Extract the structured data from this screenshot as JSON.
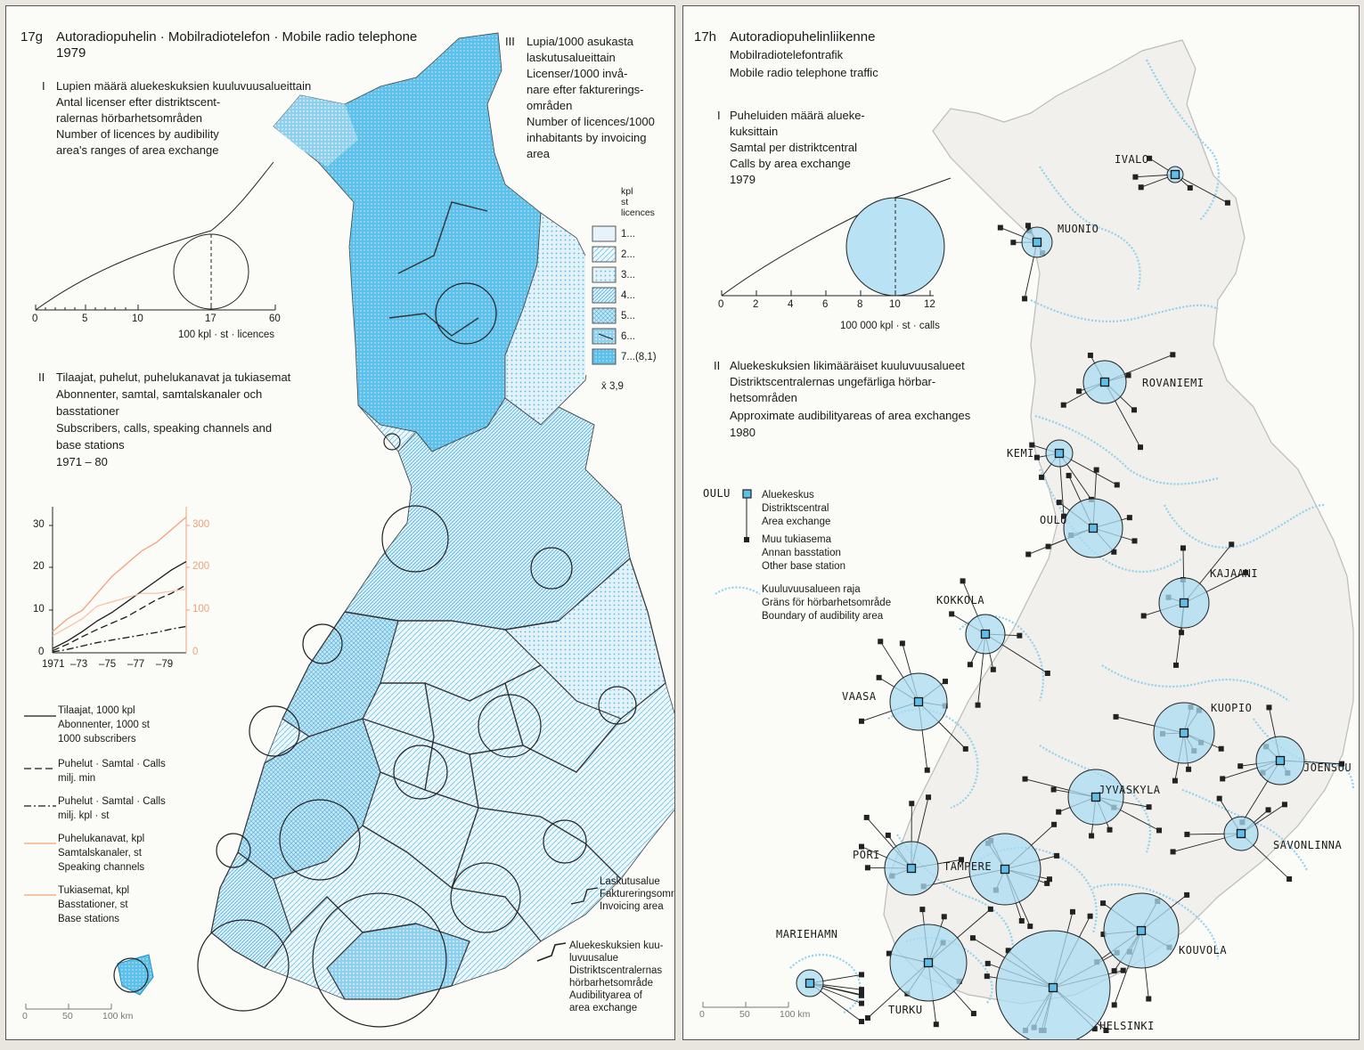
{
  "left": {
    "code": "17g",
    "title": "Autoradiopuhelin · Mobilradiotelefon · Mobile radio telephone",
    "year": "1979",
    "I": {
      "num": "I",
      "lines": [
        "Lupien määrä aluekeskuksien kuuluvuusalueittain",
        "Antal licenser efter distriktscent-",
        "ralernas hörbarhetsområden",
        "Number of licences by audibility",
        "area's ranges of area exchange"
      ],
      "scale_ticks": [
        "0",
        "5",
        "10",
        "17",
        "60"
      ],
      "scale_unit": "100 kpl · st · licences"
    },
    "II": {
      "num": "II",
      "lines": [
        "Tilaajat, puhelut, puhelukanavat ja tukiasemat",
        "Abonnenter, samtal, samtalskanaler och",
        "basstationer",
        "Subscribers, calls, speaking channels and",
        "base stations",
        "1971 – 80"
      ],
      "left_ticks": [
        "30",
        "20",
        "10",
        "0"
      ],
      "right_ticks": [
        "300",
        "200",
        "100",
        "0"
      ],
      "x_ticks": [
        "1971",
        "–73",
        "–75",
        "–77",
        "–79"
      ],
      "legend": [
        {
          "lines": [
            "Tilaajat, 1000 kpl",
            "Abonnenter, 1000 st",
            "1000 subscribers"
          ],
          "color": "#1a1a1a",
          "dash": "none"
        },
        {
          "lines": [
            "Puhelut · Samtal · Calls",
            "milj. min"
          ],
          "color": "#1a1a1a",
          "dash": "8,4"
        },
        {
          "lines": [
            "Puhelut · Samtal · Calls",
            "milj. kpl · st"
          ],
          "color": "#1a1a1a",
          "dash": "8,3,2,3"
        },
        {
          "lines": [
            "Puhelukanavat, kpl",
            "Samtalskanaler, st",
            "Speaking channels"
          ],
          "color": "#f0a27a",
          "dash": "none"
        },
        {
          "lines": [
            "Tukiasemat, kpl",
            "Basstationer, st",
            "Base stations"
          ],
          "color": "#f0a27a",
          "dash": "none"
        }
      ]
    },
    "III": {
      "num": "III",
      "lines": [
        "Lupia/1000 asukasta",
        "laskutusalueittain",
        "Licenser/1000 invå-",
        "nare efter fakturerings-",
        "områden",
        "Number of licences/1000",
        "inhabitants by invoicing",
        "area"
      ],
      "unit_lines": [
        "kpl",
        "st",
        "licences"
      ],
      "classes": [
        "1...",
        "2...",
        "3...",
        "4...",
        "5...",
        "6...",
        "7...(8,1)"
      ],
      "mean": "x̄ 3,9"
    },
    "map_legend": [
      {
        "lines": [
          "Laskutusalue",
          "Faktureringsområde",
          "Invoicing area"
        ]
      },
      {
        "lines": [
          "Aluekeskuksien kuu-",
          "luvuusalue",
          "Distriktscentralernas",
          "hörbarhetsområde",
          "Audibilityarea of",
          "area exchange"
        ]
      }
    ],
    "map_scale": [
      "0",
      "50",
      "100 km"
    ],
    "series": {
      "years": [
        1971,
        1972,
        1973,
        1974,
        1975,
        1976,
        1977,
        1978,
        1979,
        1980
      ],
      "subscribers": [
        1.0,
        2.8,
        5.0,
        7.5,
        9.5,
        12.0,
        14.5,
        17.0,
        19.5,
        21.5
      ],
      "calls_min": [
        0.5,
        2.0,
        3.8,
        5.5,
        7.0,
        8.5,
        10.5,
        12.5,
        14.0,
        16.0
      ],
      "calls_count": [
        0.2,
        0.8,
        1.6,
        2.4,
        3.0,
        3.6,
        4.2,
        4.8,
        5.6,
        6.2
      ],
      "channels": [
        50,
        80,
        100,
        140,
        180,
        210,
        240,
        260,
        290,
        320
      ],
      "base_stations": [
        40,
        60,
        80,
        110,
        120,
        130,
        140,
        140,
        145,
        150
      ]
    }
  },
  "right": {
    "code": "17h",
    "title_lines": [
      "Autoradiopuhelinliikenne",
      "Mobilradiotelefontrafik",
      "Mobile radio telephone traffic"
    ],
    "I": {
      "num": "I",
      "lines": [
        "Puheluiden määrä alueke-",
        "kuksittain",
        "Samtal per distriktcentral",
        "Calls by area exchange",
        "1979"
      ],
      "scale_ticks": [
        "0",
        "2",
        "4",
        "6",
        "8",
        "10",
        "12"
      ],
      "scale_unit": "100 000 kpl · st · calls"
    },
    "II": {
      "num": "II",
      "lines": [
        "Aluekeskuksien likimääräiset kuuluvuusalueet",
        "Distriktscentralernas ungefärliga hörbar-",
        "hetsområden",
        "Approximate audibilityareas of area exchanges",
        "1980"
      ]
    },
    "legend": {
      "oulu": "OULU",
      "exchange": [
        "Aluekeskus",
        "Distriktscentral",
        "Area exchange"
      ],
      "base": [
        "Muu tukiasema",
        "Annan basstation",
        "Other base station"
      ],
      "boundary": [
        "Kuuluvuusalueen raja",
        "Gräns för hörbarhetsområde",
        "Boundary of audibility area"
      ]
    },
    "cities": [
      {
        "name": "IVALO",
        "r": 9
      },
      {
        "name": "MUONIO",
        "r": 17
      },
      {
        "name": "ROVANIEMI",
        "r": 24
      },
      {
        "name": "KEMI",
        "r": 15
      },
      {
        "name": "OULU",
        "r": 33
      },
      {
        "name": "KAJAANI",
        "r": 28
      },
      {
        "name": "KOKKOLA",
        "r": 22
      },
      {
        "name": "VAASA",
        "r": 32
      },
      {
        "name": "KUOPIO",
        "r": 34
      },
      {
        "name": "JOENSUU",
        "r": 27
      },
      {
        "name": "JYVASKYLA",
        "r": 31
      },
      {
        "name": "SAVONLINNA",
        "r": 19
      },
      {
        "name": "PORI",
        "r": 30
      },
      {
        "name": "TAMPERE",
        "r": 40
      },
      {
        "name": "KOUVOLA",
        "r": 42
      },
      {
        "name": "MARIEHAMN",
        "r": 15
      },
      {
        "name": "TURKU",
        "r": 43
      },
      {
        "name": "HELSINKI",
        "r": 64
      }
    ],
    "map_scale": [
      "0",
      "50",
      "100 km"
    ]
  }
}
